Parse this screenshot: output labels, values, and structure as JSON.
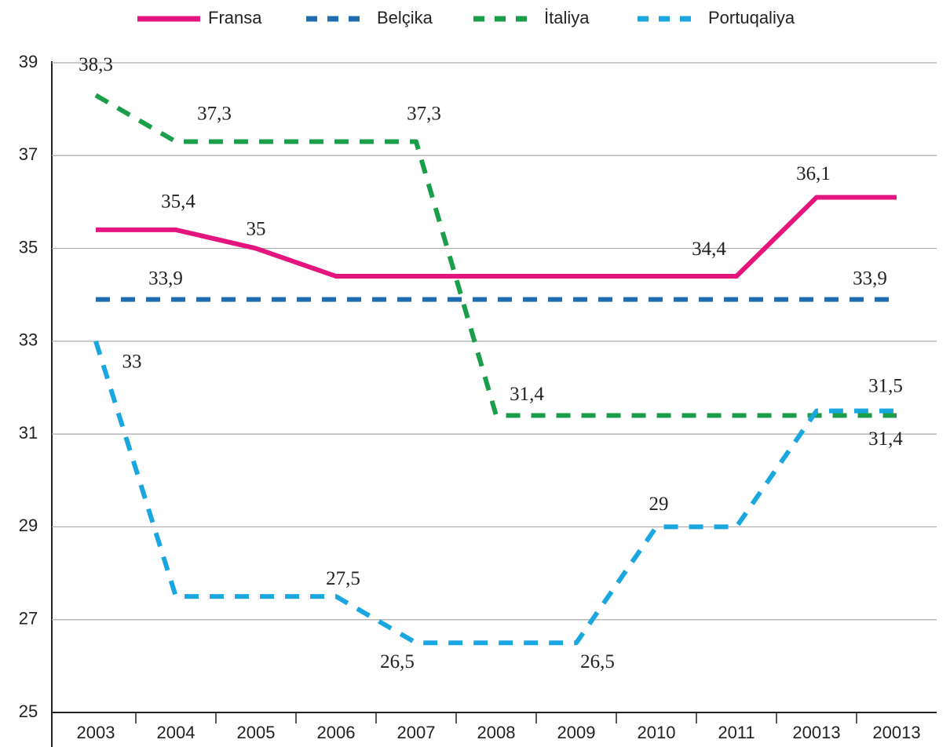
{
  "chart_data": {
    "type": "line",
    "categories": [
      "2003",
      "2004",
      "2005",
      "2006",
      "2007",
      "2008",
      "2009",
      "2010",
      "2011",
      "20013",
      "20013"
    ],
    "series": [
      {
        "name": "Fransa",
        "color": "#e5157f",
        "style": "solid",
        "values": [
          35.4,
          35.4,
          35,
          34.4,
          34.4,
          34.4,
          34.4,
          34.4,
          34.4,
          36.1,
          36.1
        ],
        "value_labels": [
          null,
          "35,4",
          "35",
          null,
          null,
          null,
          null,
          null,
          "34,4",
          "36,1",
          null
        ]
      },
      {
        "name": "Belçika",
        "color": "#1f6cb0",
        "style": "dashed",
        "values": [
          33.9,
          33.9,
          33.9,
          33.9,
          33.9,
          33.9,
          33.9,
          33.9,
          33.9,
          33.9,
          33.9
        ],
        "value_labels": [
          null,
          "33,9",
          null,
          null,
          null,
          null,
          null,
          null,
          null,
          null,
          "33,9"
        ]
      },
      {
        "name": "İtaliya",
        "color": "#1a9e4a",
        "style": "dashed",
        "values": [
          38.3,
          37.3,
          37.3,
          37.3,
          37.3,
          31.4,
          31.4,
          31.4,
          31.4,
          31.4,
          31.4
        ],
        "value_labels": [
          "38,3",
          "37,3",
          null,
          null,
          "37,3",
          "31,4",
          null,
          null,
          null,
          null,
          "31,4"
        ]
      },
      {
        "name": "Portuqaliya",
        "color": "#1aa7e0",
        "style": "dashed",
        "values": [
          33,
          27.5,
          27.5,
          27.5,
          26.5,
          26.5,
          26.5,
          29,
          29,
          31.5,
          31.5
        ],
        "value_labels": [
          "33",
          null,
          null,
          "27,5",
          "26,5",
          null,
          "26,5",
          "29",
          null,
          null,
          "31,5"
        ]
      }
    ],
    "ylim": [
      25,
      39
    ],
    "yticks": [
      25,
      27,
      29,
      31,
      33,
      35,
      37,
      39
    ],
    "grid": true,
    "legend": "top"
  }
}
